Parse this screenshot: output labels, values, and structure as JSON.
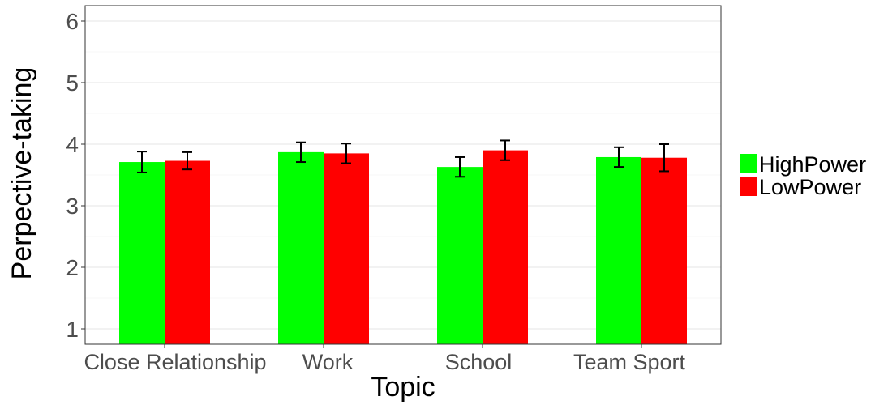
{
  "chart_data": {
    "type": "bar",
    "xlabel": "Topic",
    "ylabel": "Perpective-taking",
    "ylim": [
      0.75,
      6.25
    ],
    "yticks": [
      1,
      2,
      3,
      4,
      5,
      6
    ],
    "grid": true,
    "legend_position": "right",
    "categories": [
      "Close Relationship",
      "Work",
      "School",
      "Team Sport"
    ],
    "series": [
      {
        "name": "HighPower",
        "color": "#00ff00",
        "values": [
          3.71,
          3.87,
          3.63,
          3.79
        ],
        "error": [
          0.17,
          0.16,
          0.16,
          0.16
        ]
      },
      {
        "name": "LowPower",
        "color": "#ff0000",
        "values": [
          3.73,
          3.85,
          3.9,
          3.78
        ],
        "error": [
          0.14,
          0.16,
          0.16,
          0.22
        ]
      }
    ]
  }
}
